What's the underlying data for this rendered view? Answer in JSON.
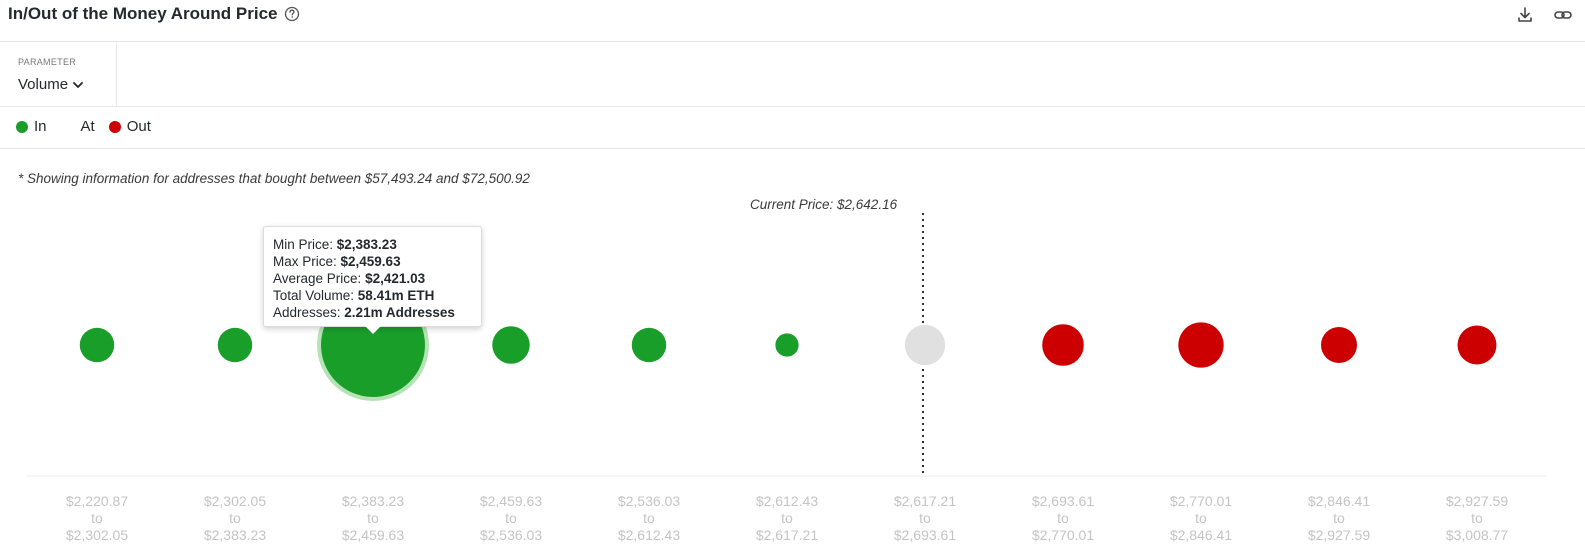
{
  "header": {
    "title": "In/Out of the Money Around Price",
    "help_icon": "help-circle-icon",
    "download_icon": "download-icon",
    "link_icon": "link-icon"
  },
  "parameter": {
    "label": "PARAMETER",
    "value": "Volume"
  },
  "legend": [
    {
      "label": "In",
      "color": "#1a9e2a"
    },
    {
      "label": "At",
      "color": ""
    },
    {
      "label": "Out",
      "color": "#cc0000"
    }
  ],
  "note": "* Showing information for addresses that bought between $57,493.24 and $72,500.92",
  "current_price_label": "Current Price: $2,642.16",
  "tooltip": {
    "min_label": "Min Price: ",
    "min_value": "$2,383.23",
    "max_label": "Max Price: ",
    "max_value": "$2,459.63",
    "avg_label": "Average Price: ",
    "avg_value": "$2,421.03",
    "vol_label": "Total Volume: ",
    "vol_value": "58.41m ETH",
    "addr_label": "Addresses: ",
    "addr_value": "2.21m Addresses"
  },
  "colors": {
    "in": "#1a9e2a",
    "at": "#e0e0e0",
    "out": "#cc0000",
    "highlight_ring": "#b6e3b6"
  },
  "chart_data": {
    "type": "scatter",
    "title": "",
    "current_price": 2642.16,
    "highlighted_index": 2,
    "bins": [
      {
        "from": "$2,220.87",
        "to": "$2,302.05",
        "status": "in",
        "relative_volume": 0.11
      },
      {
        "from": "$2,302.05",
        "to": "$2,383.23",
        "status": "in",
        "relative_volume": 0.11
      },
      {
        "from": "$2,383.23",
        "to": "$2,459.63",
        "status": "in",
        "relative_volume": 1.0,
        "volume": "58.41m ETH",
        "addresses": "2.21m Addresses",
        "avg_price": "$2,421.03"
      },
      {
        "from": "$2,459.63",
        "to": "$2,536.03",
        "status": "in",
        "relative_volume": 0.13
      },
      {
        "from": "$2,536.03",
        "to": "$2,612.43",
        "status": "in",
        "relative_volume": 0.11
      },
      {
        "from": "$2,612.43",
        "to": "$2,617.21",
        "status": "in",
        "relative_volume": 0.05
      },
      {
        "from": "$2,617.21",
        "to": "$2,693.61",
        "status": "at",
        "relative_volume": 0.15
      },
      {
        "from": "$2,693.61",
        "to": "$2,770.01",
        "status": "out",
        "relative_volume": 0.16
      },
      {
        "from": "$2,770.01",
        "to": "$2,846.41",
        "status": "out",
        "relative_volume": 0.19
      },
      {
        "from": "$2,846.41",
        "to": "$2,927.59",
        "status": "out",
        "relative_volume": 0.12
      },
      {
        "from": "$2,927.59",
        "to": "$3,008.77",
        "status": "out",
        "relative_volume": 0.14
      }
    ],
    "connector": "to"
  }
}
